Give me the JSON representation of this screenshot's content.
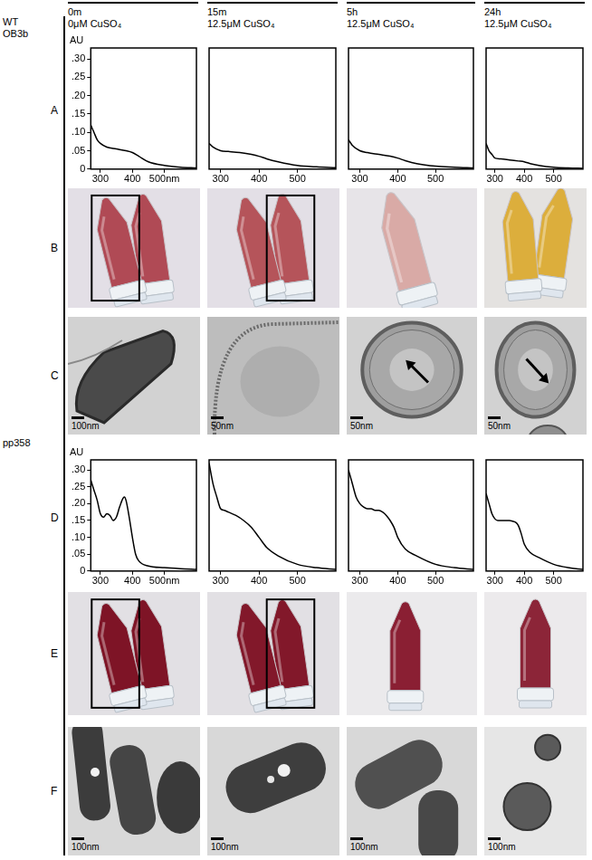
{
  "header": {
    "columns": [
      {
        "time": "0m",
        "treatment": "0μM CuSO₄"
      },
      {
        "time": "15m",
        "treatment": "12.5μM CuSO₄"
      },
      {
        "time": "5h",
        "treatment": "12.5μM CuSO₄"
      },
      {
        "time": "24h",
        "treatment": "12.5μM CuSO₄"
      }
    ]
  },
  "strains": [
    {
      "label": [
        "WT",
        "OB3b"
      ],
      "rows": [
        "A",
        "B",
        "C"
      ]
    },
    {
      "label": [
        "pp358"
      ],
      "rows": [
        "D",
        "E",
        "F"
      ]
    }
  ],
  "chart_data": [
    {
      "type": "line",
      "color": "#000000",
      "grid": false,
      "tick_labels": true,
      "y_label": "AU",
      "x": [
        270,
        280,
        290,
        300,
        320,
        350,
        380,
        400,
        420,
        450,
        500,
        550,
        600
      ],
      "values": [
        0.12,
        0.1,
        0.08,
        0.07,
        0.06,
        0.055,
        0.05,
        0.045,
        0.035,
        0.02,
        0.01,
        0.005,
        0.003
      ],
      "xlim": [
        270,
        600
      ],
      "ylim": [
        0,
        0.33
      ],
      "xticks": [
        300,
        400,
        {
          "value": 500,
          "label": "500nm"
        }
      ],
      "yticks": [
        0,
        {
          "value": 0.05,
          "label": ".05"
        },
        {
          "value": 0.1,
          "label": ".10"
        },
        {
          "value": 0.15,
          "label": ".15"
        },
        {
          "value": 0.2,
          "label": ".20"
        },
        {
          "value": 0.25,
          "label": ".25"
        },
        {
          "value": 0.3,
          "label": ".30"
        }
      ]
    },
    {
      "type": "line",
      "color": "#000000",
      "grid": false,
      "tick_labels": "x",
      "x": [
        270,
        280,
        300,
        320,
        350,
        380,
        400,
        420,
        450,
        500,
        550,
        600
      ],
      "values": [
        0.07,
        0.06,
        0.05,
        0.048,
        0.045,
        0.04,
        0.035,
        0.028,
        0.02,
        0.01,
        0.006,
        0.004
      ],
      "xlim": [
        270,
        600
      ],
      "ylim": [
        0,
        0.33
      ],
      "xticks": [
        300,
        400,
        500
      ]
    },
    {
      "type": "line",
      "color": "#000000",
      "grid": false,
      "tick_labels": "x",
      "x": [
        270,
        280,
        300,
        320,
        350,
        380,
        400,
        420,
        450,
        500,
        550,
        600
      ],
      "values": [
        0.08,
        0.065,
        0.05,
        0.045,
        0.04,
        0.035,
        0.03,
        0.023,
        0.015,
        0.008,
        0.005,
        0.003
      ],
      "xlim": [
        270,
        600
      ],
      "ylim": [
        0,
        0.33
      ],
      "xticks": [
        300,
        400,
        500
      ]
    },
    {
      "type": "line",
      "color": "#000000",
      "grid": false,
      "tick_labels": "x",
      "x": [
        270,
        280,
        290,
        300,
        320,
        350,
        380,
        400,
        420,
        450,
        500,
        550,
        600
      ],
      "values": [
        0.07,
        0.05,
        0.04,
        0.03,
        0.028,
        0.025,
        0.022,
        0.02,
        0.015,
        0.01,
        0.005,
        0.003,
        0.002
      ],
      "xlim": [
        270,
        600
      ],
      "ylim": [
        0,
        0.33
      ],
      "xticks": [
        300,
        400,
        500
      ]
    },
    {
      "type": "line",
      "color": "#000000",
      "grid": false,
      "tick_labels": true,
      "y_label": "AU",
      "x": [
        270,
        280,
        290,
        300,
        310,
        320,
        330,
        340,
        350,
        360,
        370,
        375,
        380,
        390,
        400,
        410,
        420,
        450,
        500,
        550,
        600
      ],
      "values": [
        0.27,
        0.24,
        0.21,
        0.17,
        0.16,
        0.17,
        0.165,
        0.15,
        0.16,
        0.19,
        0.215,
        0.22,
        0.21,
        0.16,
        0.1,
        0.05,
        0.03,
        0.015,
        0.01,
        0.007,
        0.005
      ],
      "xlim": [
        270,
        600
      ],
      "ylim": [
        0,
        0.33
      ],
      "xticks": [
        300,
        400,
        {
          "value": 500,
          "label": "500nm"
        }
      ],
      "yticks": [
        0,
        {
          "value": 0.05,
          "label": ".05"
        },
        {
          "value": 0.1,
          "label": ".10"
        },
        {
          "value": 0.15,
          "label": ".15"
        },
        {
          "value": 0.2,
          "label": ".20"
        },
        {
          "value": 0.25,
          "label": ".25"
        },
        {
          "value": 0.3,
          "label": ".30"
        }
      ]
    },
    {
      "type": "line",
      "color": "#000000",
      "grid": false,
      "tick_labels": "x",
      "x": [
        270,
        280,
        290,
        300,
        310,
        320,
        340,
        360,
        380,
        400,
        420,
        450,
        500,
        550,
        600
      ],
      "values": [
        0.32,
        0.26,
        0.22,
        0.185,
        0.18,
        0.175,
        0.165,
        0.15,
        0.13,
        0.1,
        0.07,
        0.045,
        0.02,
        0.01,
        0.005
      ],
      "xlim": [
        270,
        600
      ],
      "ylim": [
        0,
        0.33
      ],
      "xticks": [
        300,
        400,
        500
      ]
    },
    {
      "type": "line",
      "color": "#000000",
      "grid": false,
      "tick_labels": "x",
      "x": [
        270,
        280,
        290,
        300,
        310,
        320,
        330,
        340,
        350,
        360,
        370,
        380,
        390,
        400,
        420,
        450,
        500,
        550,
        600
      ],
      "values": [
        0.3,
        0.26,
        0.22,
        0.2,
        0.19,
        0.185,
        0.185,
        0.18,
        0.18,
        0.175,
        0.165,
        0.15,
        0.13,
        0.1,
        0.065,
        0.045,
        0.02,
        0.01,
        0.005
      ],
      "xlim": [
        270,
        600
      ],
      "ylim": [
        0,
        0.33
      ],
      "xticks": [
        300,
        400,
        500
      ]
    },
    {
      "type": "line",
      "color": "#000000",
      "grid": false,
      "tick_labels": "x",
      "x": [
        270,
        280,
        290,
        300,
        310,
        320,
        330,
        340,
        350,
        360,
        370,
        380,
        390,
        400,
        420,
        450,
        500,
        550,
        600
      ],
      "values": [
        0.23,
        0.2,
        0.17,
        0.155,
        0.15,
        0.15,
        0.15,
        0.15,
        0.15,
        0.148,
        0.145,
        0.135,
        0.11,
        0.08,
        0.055,
        0.04,
        0.02,
        0.01,
        0.005
      ],
      "xlim": [
        270,
        600
      ],
      "ylim": [
        0,
        0.33
      ],
      "xticks": [
        300,
        400,
        500
      ]
    }
  ],
  "micrographs": {
    "C": [
      "100nm",
      "50nm",
      "50nm",
      "50nm"
    ],
    "F": [
      "100nm",
      "100nm",
      "100nm",
      "100nm"
    ]
  }
}
